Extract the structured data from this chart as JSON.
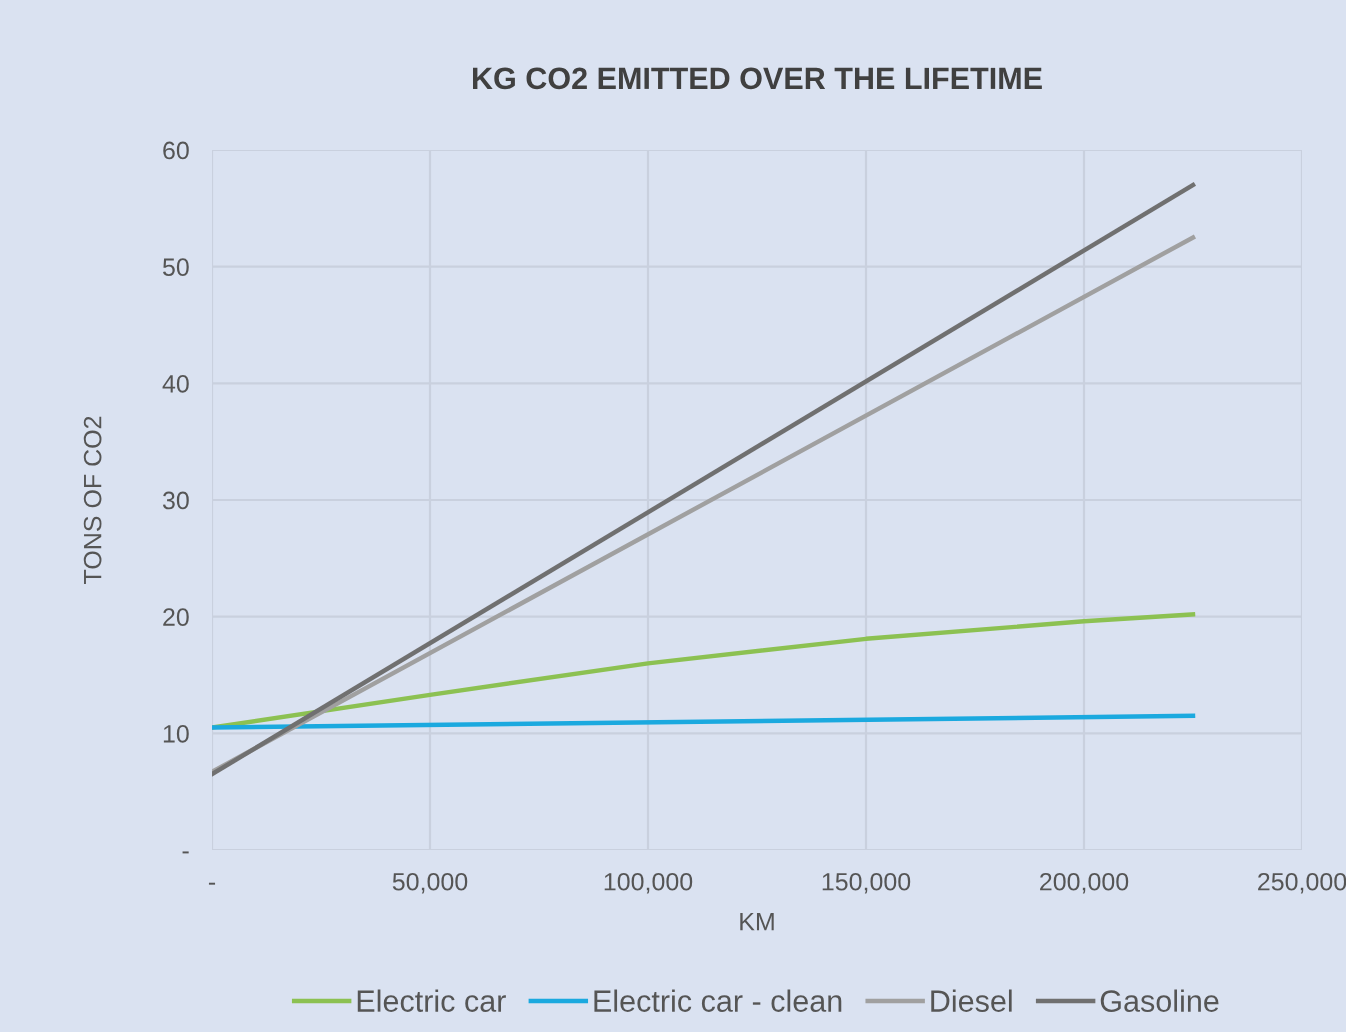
{
  "chart_data": {
    "type": "line",
    "title": "KG CO2 EMITTED OVER THE LIFETIME",
    "xlabel": "KM",
    "ylabel": "TONS OF CO2",
    "xlim": [
      0,
      250000
    ],
    "xticks": [
      {
        "value": 0,
        "label": "-"
      },
      {
        "value": 50000,
        "label": "50,000"
      },
      {
        "value": 100000,
        "label": "100,000"
      },
      {
        "value": 150000,
        "label": "150,000"
      },
      {
        "value": 200000,
        "label": "200,000"
      },
      {
        "value": 250000,
        "label": "250,000"
      }
    ],
    "ylim": [
      0,
      60
    ],
    "yticks": [
      {
        "value": 0,
        "label": "-"
      },
      10,
      20,
      30,
      40,
      50,
      60
    ],
    "grid": true,
    "legend": "bottom",
    "series": [
      {
        "name": "Electric car",
        "color": "#8cc152",
        "x": [
          0,
          50000,
          100000,
          150000,
          200000,
          225000
        ],
        "values": [
          10.5,
          13.3,
          16.0,
          18.1,
          19.6,
          20.2
        ]
      },
      {
        "name": "Electric car - clean",
        "color": "#1ba9df",
        "x": [
          0,
          225000
        ],
        "values": [
          10.5,
          11.5
        ]
      },
      {
        "name": "Diesel",
        "color": "#a0a0a0",
        "x": [
          0,
          225000
        ],
        "values": [
          6.7,
          52.5
        ]
      },
      {
        "name": "Gasoline",
        "color": "#707070",
        "x": [
          0,
          225000
        ],
        "values": [
          6.5,
          57
        ]
      }
    ]
  }
}
